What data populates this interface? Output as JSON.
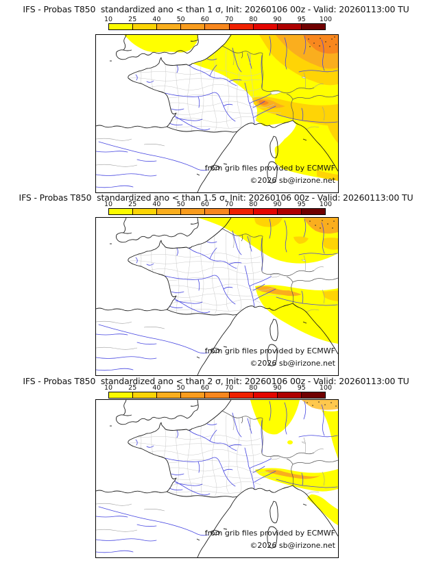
{
  "page": {
    "background": "#ffffff"
  },
  "panels": [
    {
      "title": "IFS - Probas T850  standardized ano < than 1 σ, Init: 20260106 00z - Valid: 20260113:00 TU"
    },
    {
      "title": "IFS - Probas T850  standardized ano < than 1.5 σ, Init: 20260106 00z - Valid: 20260113:00 TU"
    },
    {
      "title": "IFS - Probas T850  standardized ano < than 2 σ, Init: 20260106 00z - Valid: 20260113:00 TU"
    }
  ],
  "colorbar": {
    "tick_labels": [
      "10",
      "25",
      "40",
      "50",
      "60",
      "70",
      "80",
      "90",
      "95",
      "100"
    ],
    "segment_colors": [
      "#FBFB00",
      "#FBD405",
      "#FAAE1E",
      "#F99C1E",
      "#F8871E",
      "#EF2100",
      "#E30500",
      "#AE0000",
      "#700000"
    ]
  },
  "map": {
    "attribution": "from grib files provided by ECMWF",
    "copyright": "©2026 sb@irizone.net",
    "palette": {
      "yellow": "#FFFF00",
      "gold": "#FFD405",
      "orange": "#FAAE1E",
      "dark_orange": "#F8871E",
      "light_orange": "#FFC84D",
      "river_blue": "#4343E0",
      "coast_black": "#1A1A1A",
      "border_gray": "#555555",
      "region_gray": "#9A9A9A",
      "dept_gray": "#C9C9C9"
    }
  }
}
